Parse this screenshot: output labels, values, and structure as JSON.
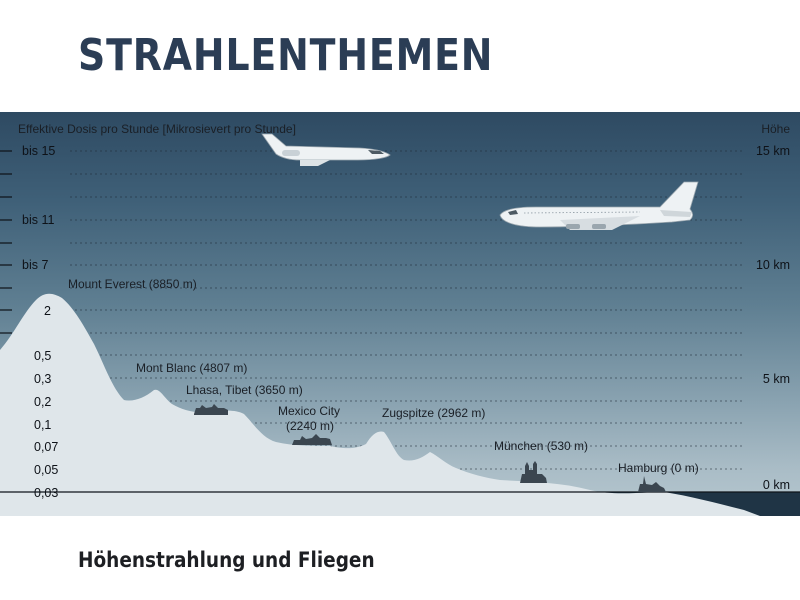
{
  "title": "STRAHLENTHEMEN",
  "subtitle": "Höhenstrahlung und Fliegen",
  "colors": {
    "title": "#2b3d55",
    "sky_top": "#2e4a62",
    "sky_bottom": "#b7c8d0",
    "terrain": "#dfe6ea",
    "sea": "#1f3445"
  },
  "diagram": {
    "left_axis_label": "Effektive Dosis pro Stunde [Mikrosievert pro Stunde]",
    "right_axis_label": "Höhe",
    "dose_ticks": [
      "bis 15",
      "bis 11",
      "bis 7",
      "2",
      "0,5",
      "0,3",
      "0,2",
      "0,1",
      "0,07",
      "0,05",
      "0,03"
    ],
    "height_ticks": [
      "15 km",
      "10 km",
      "5 km",
      "0 km"
    ],
    "places": [
      {
        "name": "Mount Everest (8850 m)",
        "altitude_m": 8850
      },
      {
        "name": "Mont Blanc (4807 m)",
        "altitude_m": 4807
      },
      {
        "name": "Lhasa, Tibet (3650 m)",
        "altitude_m": 3650
      },
      {
        "name": "Mexico City",
        "name_line2": "(2240 m)",
        "altitude_m": 2240
      },
      {
        "name": "Zugspitze (2962 m)",
        "altitude_m": 2962
      },
      {
        "name": "München (530 m)",
        "altitude_m": 530
      },
      {
        "name": "Hamburg (0 m)",
        "altitude_m": 0
      }
    ],
    "icons": [
      "business-jet-icon",
      "jumbo-jet-icon",
      "city-skyline-icon"
    ]
  }
}
